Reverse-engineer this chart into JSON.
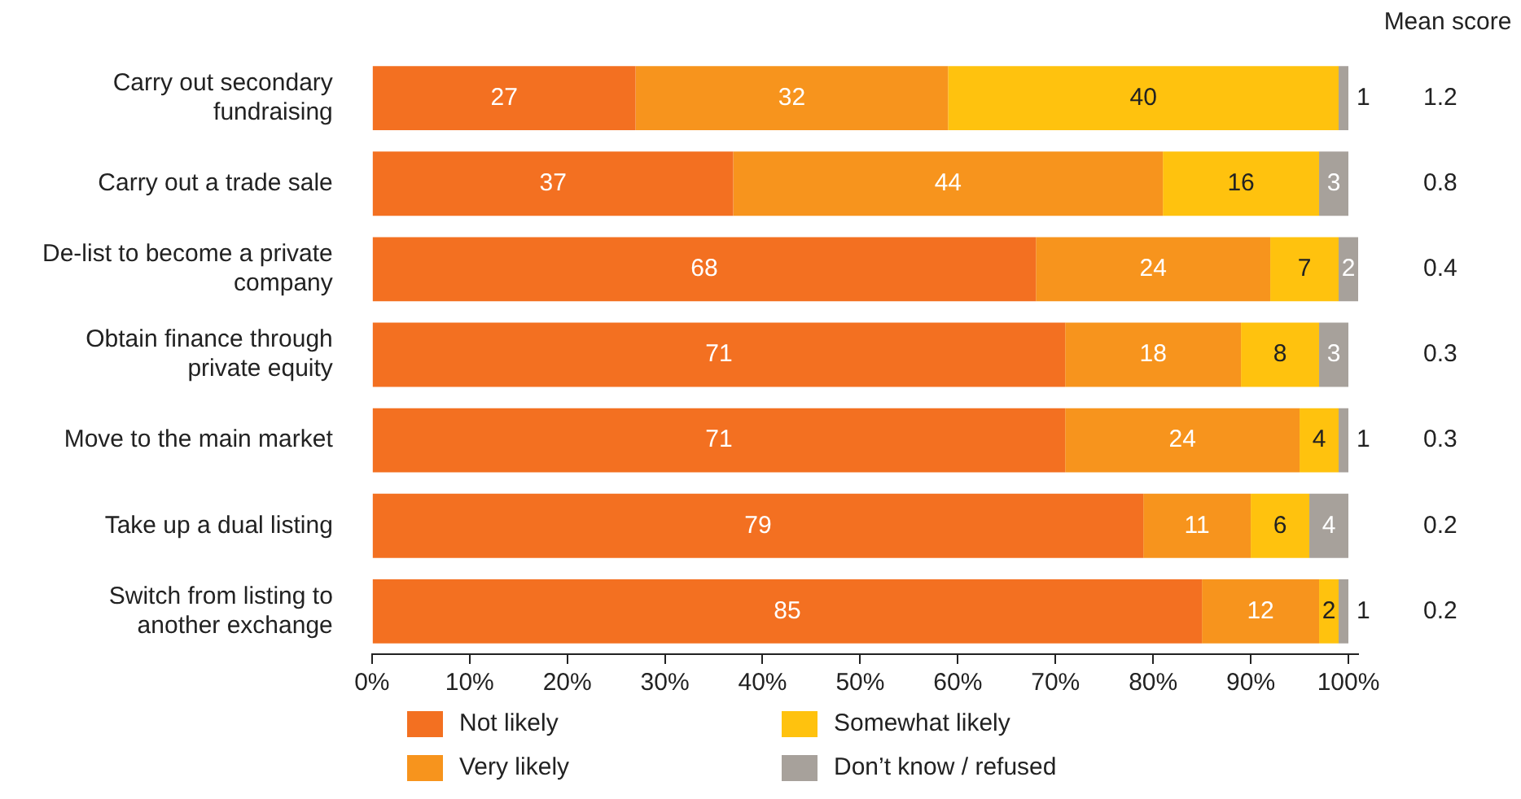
{
  "chart_data": {
    "type": "bar",
    "orientation": "horizontal",
    "stacked": true,
    "categories": [
      "Carry out secondary fundraising",
      "Carry out a trade sale",
      "De-list to become a private company",
      "Obtain finance through private equity",
      "Move to the main market",
      "Take up a dual listing",
      "Switch from listing to another exchange"
    ],
    "series": [
      {
        "name": "Not likely",
        "color": "#f37021",
        "values": [
          27,
          37,
          68,
          71,
          71,
          79,
          85
        ]
      },
      {
        "name": "Very likely",
        "color": "#f7941d",
        "values": [
          32,
          44,
          24,
          18,
          24,
          11,
          12
        ]
      },
      {
        "name": "Somewhat likely",
        "color": "#ffc20e",
        "values": [
          40,
          16,
          7,
          8,
          4,
          6,
          2
        ]
      },
      {
        "name": "Don’t know / refused",
        "color": "#a7a19b",
        "values": [
          1,
          3,
          2,
          3,
          1,
          4,
          1
        ]
      }
    ],
    "xlim": [
      0,
      101
    ],
    "xticks": [
      {
        "value": 0,
        "label": "0%"
      },
      {
        "value": 10,
        "label": "10%"
      },
      {
        "value": 20,
        "label": "20%"
      },
      {
        "value": 30,
        "label": "30%"
      },
      {
        "value": 40,
        "label": "40%"
      },
      {
        "value": 50,
        "label": "50%"
      },
      {
        "value": 60,
        "label": "60%"
      },
      {
        "value": 70,
        "label": "70%"
      },
      {
        "value": 80,
        "label": "80%"
      },
      {
        "value": 90,
        "label": "90%"
      },
      {
        "value": 100,
        "label": "100%"
      }
    ],
    "data_labels": true,
    "grid": false,
    "legend": "bottom",
    "annotations": [
      "Mean score",
      "1.2",
      "0.8",
      "0.4",
      "0.3",
      "0.3",
      "0.2",
      "0.2"
    ]
  }
}
